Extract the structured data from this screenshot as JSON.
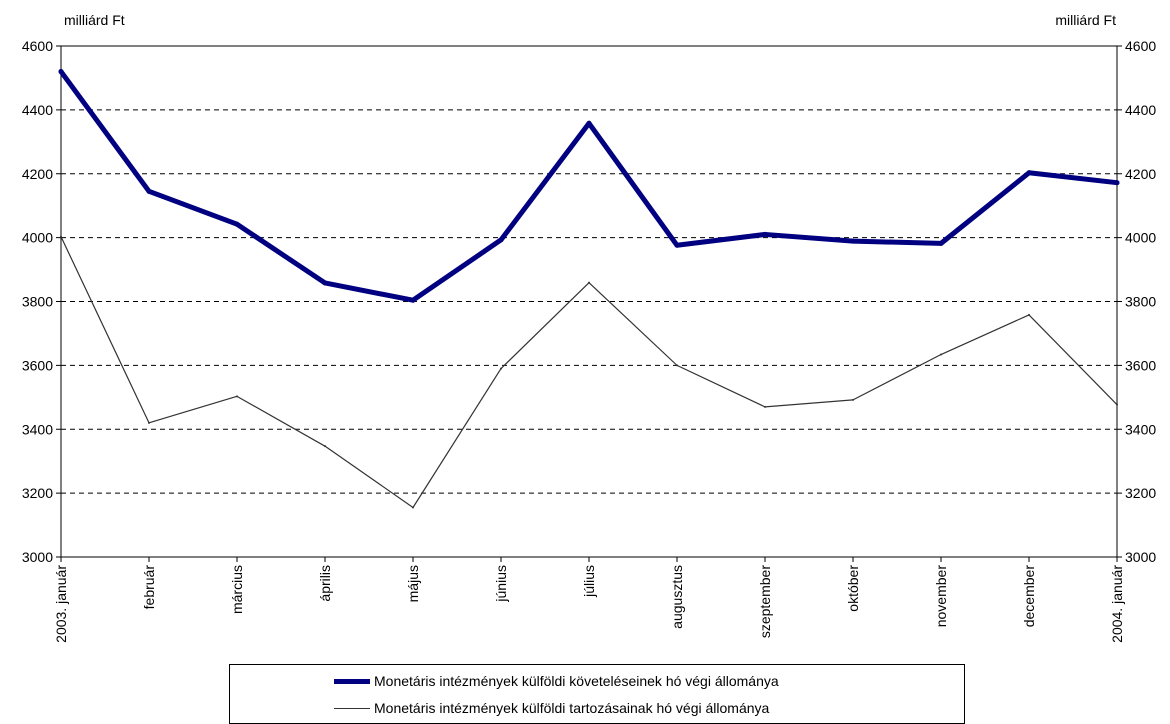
{
  "unit_left": "milliárd Ft",
  "unit_right": "milliárd Ft",
  "chart_data": {
    "type": "line",
    "categories": [
      "2003. január",
      "február",
      "március",
      "április",
      "május",
      "június",
      "július",
      "augusztus",
      "szeptember",
      "október",
      "november",
      "december",
      "2004. január"
    ],
    "series": [
      {
        "name": "Monetáris intézmények külföldi követeléseinek hó végi állománya",
        "color": "#000080",
        "values": [
          4520,
          4145,
          4042,
          3858,
          3804,
          3993,
          4358,
          3976,
          4010,
          3989,
          3982,
          4203,
          4172
        ]
      },
      {
        "name": "Monetáris intézmények külföldi tartozásainak hó végi állománya",
        "color": "#333333",
        "values": [
          4003,
          3420,
          3503,
          3347,
          3155,
          3590,
          3859,
          3600,
          3470,
          3492,
          3634,
          3758,
          3477
        ]
      }
    ],
    "y_ticks": [
      3000,
      3200,
      3400,
      3600,
      3800,
      4000,
      4200,
      4400,
      4600
    ],
    "ylim": [
      3000,
      4600
    ],
    "grid": "horizontal dashed",
    "legend": "bottom"
  }
}
